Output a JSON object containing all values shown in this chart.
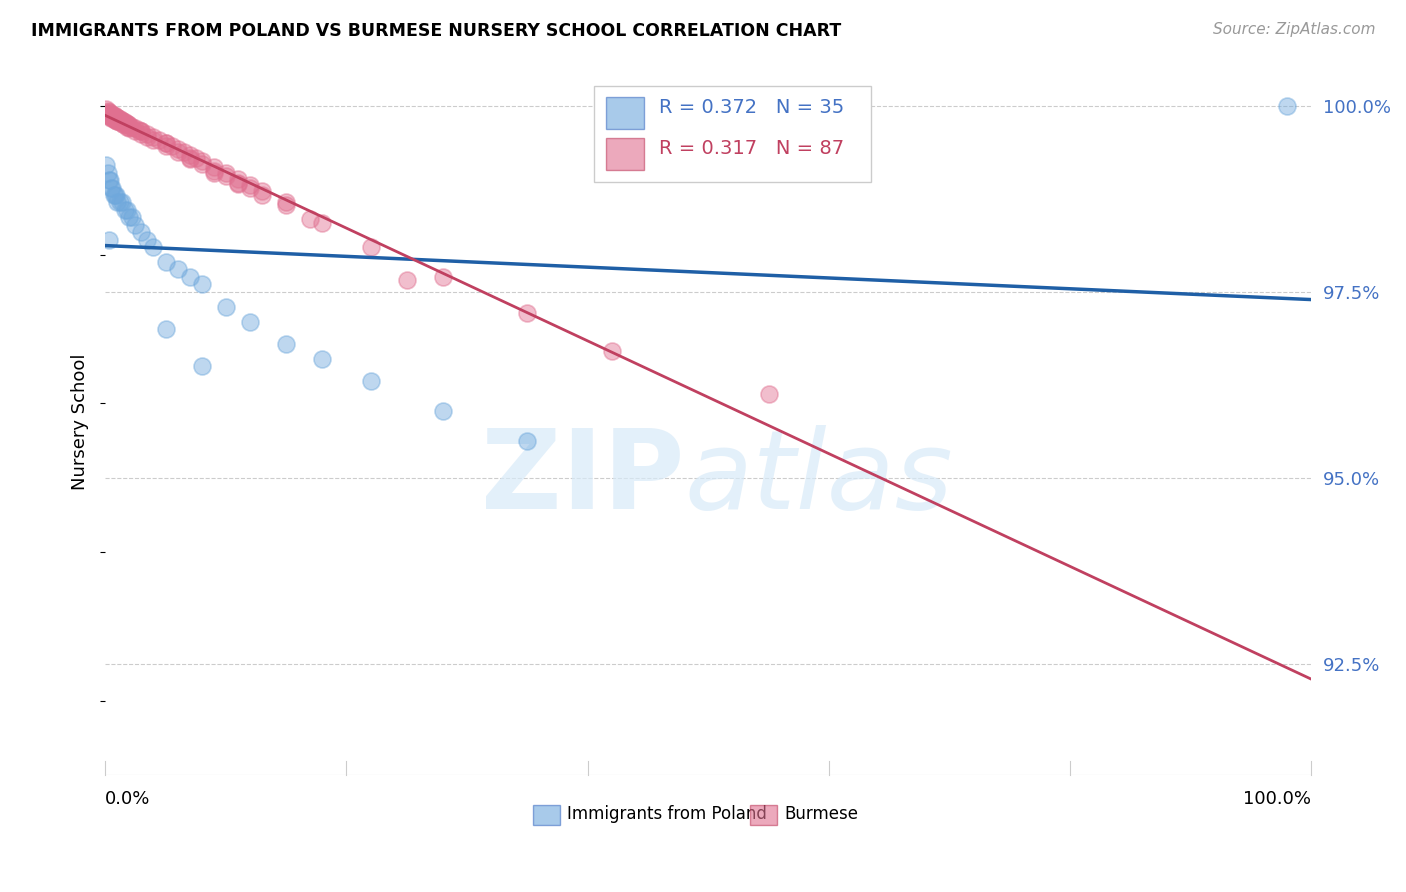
{
  "title": "IMMIGRANTS FROM POLAND VS BURMESE NURSERY SCHOOL CORRELATION CHART",
  "source": "Source: ZipAtlas.com",
  "ylabel": "Nursery School",
  "ytick_labels": [
    "100.0%",
    "97.5%",
    "95.0%",
    "92.5%"
  ],
  "ytick_values": [
    1.0,
    0.975,
    0.95,
    0.925
  ],
  "xlim": [
    0.0,
    1.0
  ],
  "ylim": [
    0.91,
    1.005
  ],
  "legend_blue_r": "0.372",
  "legend_blue_n": "35",
  "legend_pink_r": "0.317",
  "legend_pink_n": "87",
  "legend_label_blue": "Immigrants from Poland",
  "legend_label_pink": "Burmese",
  "blue_color": "#6fa8dc",
  "pink_color": "#e07090",
  "blue_line_color": "#1f5fa6",
  "pink_line_color": "#c04060",
  "blue_scatter_x": [
    0.001,
    0.002,
    0.003,
    0.004,
    0.005,
    0.006,
    0.007,
    0.008,
    0.009,
    0.01,
    0.012,
    0.014,
    0.016,
    0.018,
    0.02,
    0.022,
    0.025,
    0.03,
    0.035,
    0.04,
    0.05,
    0.06,
    0.07,
    0.08,
    0.1,
    0.12,
    0.15,
    0.18,
    0.22,
    0.28,
    0.35,
    0.05,
    0.08,
    0.98,
    0.003
  ],
  "blue_scatter_y": [
    0.992,
    0.991,
    0.99,
    0.99,
    0.989,
    0.989,
    0.988,
    0.988,
    0.988,
    0.987,
    0.987,
    0.987,
    0.986,
    0.986,
    0.985,
    0.985,
    0.984,
    0.983,
    0.982,
    0.981,
    0.979,
    0.978,
    0.977,
    0.976,
    0.973,
    0.971,
    0.968,
    0.966,
    0.963,
    0.959,
    0.955,
    0.97,
    0.965,
    1.0,
    0.982
  ],
  "pink_scatter_x": [
    0.001,
    0.002,
    0.003,
    0.004,
    0.005,
    0.006,
    0.007,
    0.008,
    0.009,
    0.01,
    0.011,
    0.012,
    0.013,
    0.014,
    0.015,
    0.016,
    0.017,
    0.018,
    0.019,
    0.02,
    0.022,
    0.025,
    0.028,
    0.03,
    0.035,
    0.04,
    0.045,
    0.05,
    0.055,
    0.06,
    0.065,
    0.07,
    0.075,
    0.08,
    0.09,
    0.1,
    0.11,
    0.12,
    0.13,
    0.15,
    0.001,
    0.002,
    0.003,
    0.004,
    0.005,
    0.006,
    0.007,
    0.008,
    0.009,
    0.01,
    0.012,
    0.015,
    0.018,
    0.02,
    0.025,
    0.03,
    0.035,
    0.04,
    0.05,
    0.06,
    0.07,
    0.08,
    0.1,
    0.12,
    0.15,
    0.18,
    0.22,
    0.28,
    0.35,
    0.42,
    0.003,
    0.005,
    0.008,
    0.01,
    0.015,
    0.02,
    0.03,
    0.05,
    0.25,
    0.55,
    0.07,
    0.09,
    0.11,
    0.13,
    0.17,
    0.09,
    0.11
  ],
  "pink_scatter_y": [
    0.9995,
    0.9993,
    0.9991,
    0.999,
    0.9989,
    0.9988,
    0.9987,
    0.9986,
    0.9985,
    0.9984,
    0.9983,
    0.9982,
    0.9981,
    0.998,
    0.9979,
    0.9978,
    0.9977,
    0.9976,
    0.9975,
    0.9974,
    0.9972,
    0.997,
    0.9968,
    0.9966,
    0.9962,
    0.9958,
    0.9954,
    0.995,
    0.9946,
    0.9942,
    0.9938,
    0.9934,
    0.993,
    0.9926,
    0.9918,
    0.991,
    0.9902,
    0.9894,
    0.9886,
    0.987,
    0.999,
    0.9988,
    0.9987,
    0.9986,
    0.9985,
    0.9984,
    0.9983,
    0.9982,
    0.9981,
    0.998,
    0.9978,
    0.9975,
    0.9972,
    0.997,
    0.9966,
    0.9962,
    0.9958,
    0.9954,
    0.9946,
    0.9938,
    0.993,
    0.9922,
    0.9906,
    0.989,
    0.9866,
    0.9842,
    0.981,
    0.977,
    0.9722,
    0.967,
    0.9988,
    0.9984,
    0.9981,
    0.998,
    0.9975,
    0.9972,
    0.9966,
    0.995,
    0.9766,
    0.9612,
    0.9928,
    0.9912,
    0.9896,
    0.988,
    0.9848,
    0.991,
    0.9895
  ]
}
